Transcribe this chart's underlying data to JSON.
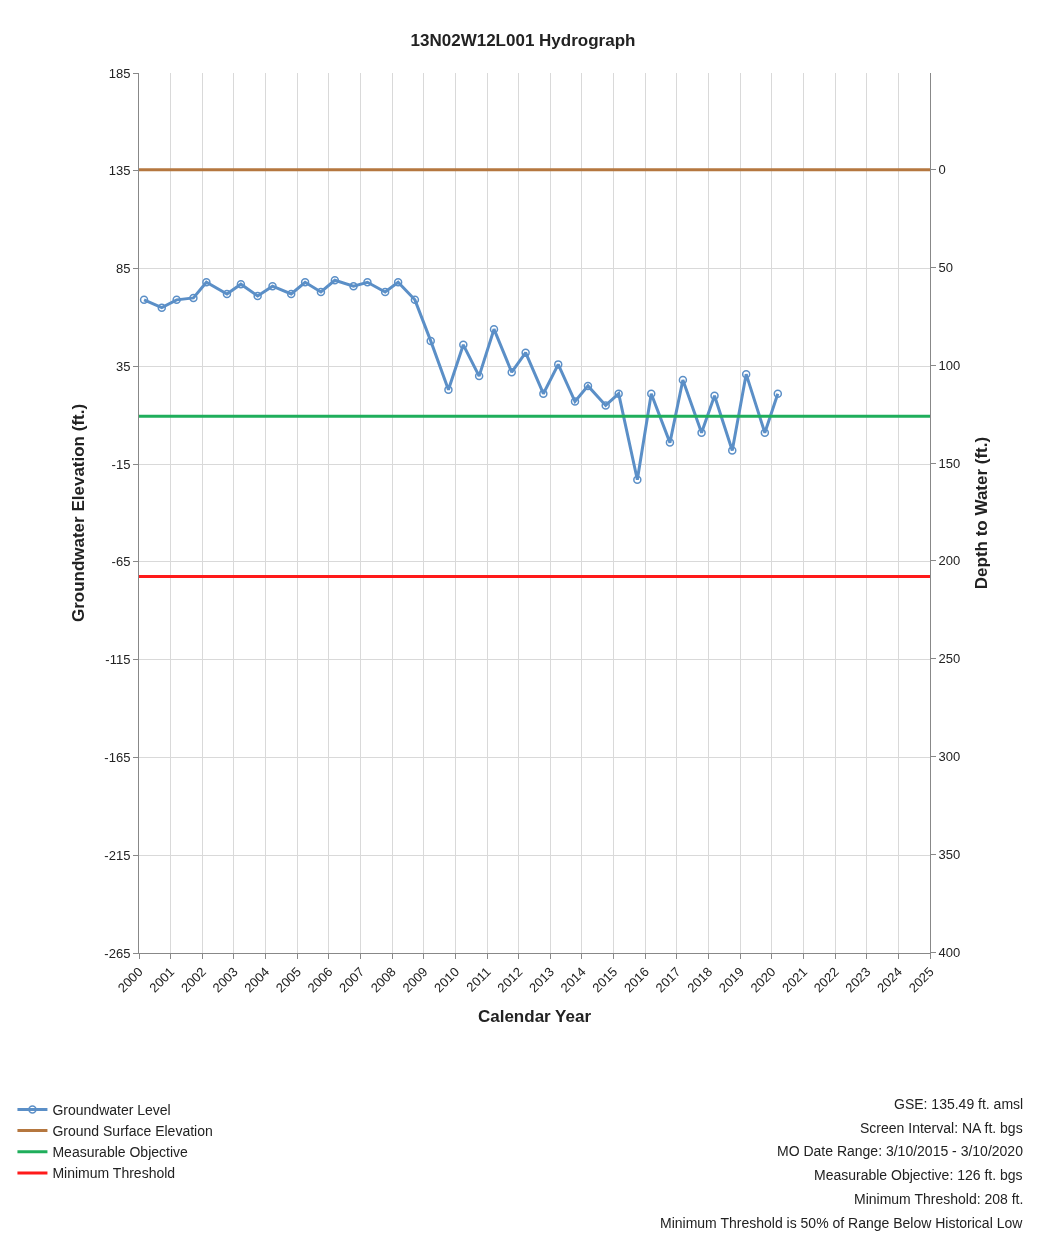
{
  "chart_data": {
    "type": "line",
    "title": "13N02W12L001 Hydrograph",
    "xlabel": "Calendar Year",
    "ylabel": "Groundwater Elevation (ft.)",
    "y2label": "Depth to Water (ft.)",
    "series": [
      {
        "name": "Groundwater Level",
        "color": "#5b8fc7",
        "x": [
          2000.16,
          2000.72,
          2001.19,
          2001.72,
          2002.13,
          2002.78,
          2003.22,
          2003.75,
          2004.22,
          2004.81,
          2005.25,
          2005.75,
          2006.19,
          2006.78,
          2007.22,
          2007.78,
          2008.19,
          2008.72,
          2009.22,
          2009.78,
          2010.25,
          2010.75,
          2011.22,
          2011.78,
          2012.22,
          2012.78,
          2013.25,
          2013.78,
          2014.19,
          2014.75,
          2015.16,
          2015.75,
          2016.19,
          2016.78,
          2017.19,
          2017.78,
          2018.19,
          2018.75,
          2019.19,
          2019.78,
          2020.19
        ],
        "values": [
          69,
          65,
          69,
          70,
          78,
          72,
          77,
          71,
          76,
          72,
          78,
          73,
          79,
          76,
          78,
          73,
          78,
          69,
          48,
          23,
          46,
          30,
          54,
          32,
          42,
          21,
          36,
          17,
          25,
          15,
          21,
          -23,
          21,
          -4,
          28,
          1,
          20,
          -8,
          31,
          1,
          21
        ]
      }
    ],
    "ref_lines": [
      {
        "axis": "y",
        "value": 135.49,
        "label": "Ground Surface Elevation",
        "color": "#b5773f"
      },
      {
        "axis": "y",
        "value": 9.49,
        "label": "Measurable Objective",
        "color": "#1fae5b"
      },
      {
        "axis": "y",
        "value": -72.51,
        "label": "Minimum Threshold",
        "color": "#ff1a1a"
      }
    ],
    "annotations": [
      "GSE: 135.49 ft. amsl",
      "Screen Interval: NA ft. bgs",
      "MO Date Range: 3/10/2015 - 3/10/2020",
      "Measurable Objective: 126 ft. bgs",
      "Minimum Threshold: 208 ft.",
      "Minimum Threshold is 50% of Range Below Historical Low"
    ],
    "xlim": [
      2000,
      2025
    ],
    "xticks": [
      2000,
      2001,
      2002,
      2003,
      2004,
      2005,
      2006,
      2007,
      2008,
      2009,
      2010,
      2011,
      2012,
      2013,
      2014,
      2015,
      2016,
      2017,
      2018,
      2019,
      2020,
      2021,
      2022,
      2023,
      2024,
      2025
    ],
    "ylim": [
      -265,
      185
    ],
    "yticks": [
      -265,
      -215,
      -165,
      -115,
      -65,
      -15,
      35,
      85,
      135,
      185
    ],
    "y2lim": [
      400.49,
      -49.51
    ],
    "y2ticks": [
      0,
      50,
      100,
      150,
      200,
      250,
      300,
      350,
      400
    ],
    "grid": true,
    "legend": "bottom left",
    "marker": "circle",
    "line_style": "solid"
  }
}
